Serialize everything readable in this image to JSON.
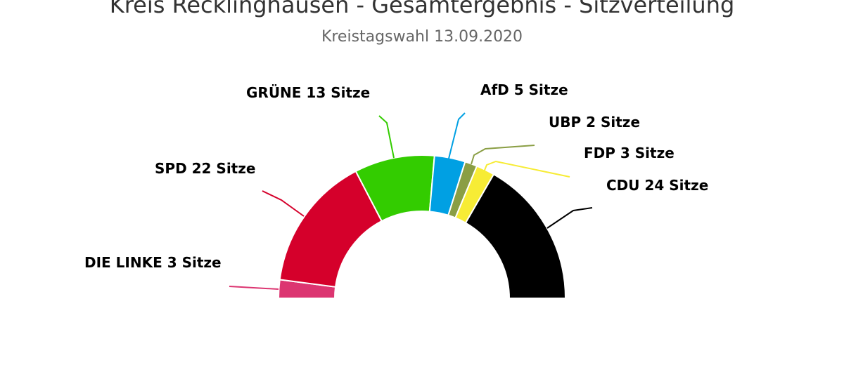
{
  "chart_data": {
    "type": "pie",
    "variant": "semicircle-parliament",
    "title": "Kreis Recklinghausen - Gesamtergebnis - Sitzverteilung",
    "subtitle": "Kreistagswahl 13.09.2020",
    "categories": [
      "DIE LINKE",
      "SPD",
      "GRÜNE",
      "AfD",
      "UBP",
      "FDP",
      "CDU"
    ],
    "values": [
      3,
      22,
      13,
      5,
      2,
      3,
      24
    ],
    "colors": [
      "#dc3571",
      "#d5002b",
      "#33cc00",
      "#00a0e3",
      "#8a9e44",
      "#f7ec35",
      "#000000"
    ],
    "labels": [
      "DIE LINKE 3 Sitze",
      "SPD 22 Sitze",
      "GRÜNE 13 Sitze",
      "AfD 5 Sitze",
      "UBP 2 Sitze",
      "FDP 3 Sitze",
      "CDU 24 Sitze"
    ],
    "unit": "Sitze",
    "legend": "none",
    "data_labels": "outside-with-connectors"
  }
}
